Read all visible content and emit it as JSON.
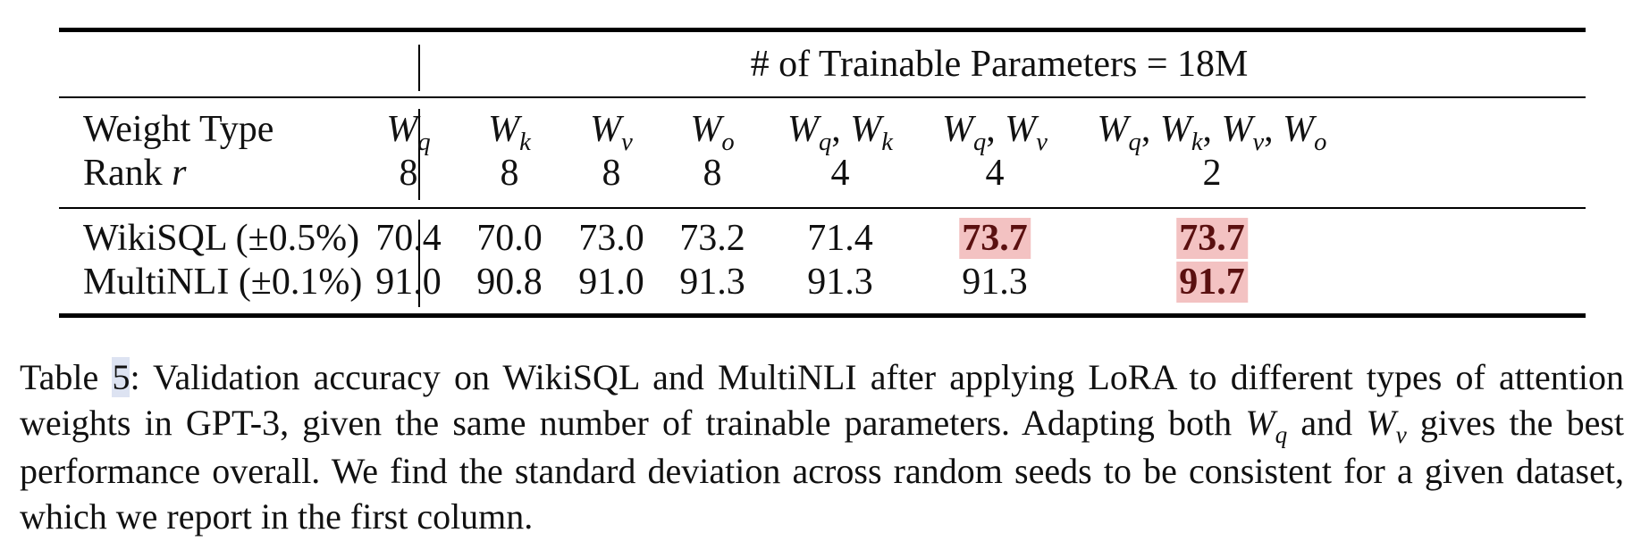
{
  "table": {
    "group_header": "# of Trainable Parameters = 18M",
    "row_labels": {
      "weight_type": "Weight Type",
      "rank_prefix": "Rank",
      "rank_symbol": "r"
    },
    "columns": [
      {
        "weights": [
          {
            "base": "W",
            "sub": "q"
          }
        ],
        "rank": "8"
      },
      {
        "weights": [
          {
            "base": "W",
            "sub": "k"
          }
        ],
        "rank": "8"
      },
      {
        "weights": [
          {
            "base": "W",
            "sub": "v"
          }
        ],
        "rank": "8"
      },
      {
        "weights": [
          {
            "base": "W",
            "sub": "o"
          }
        ],
        "rank": "8"
      },
      {
        "weights": [
          {
            "base": "W",
            "sub": "q"
          },
          {
            "base": "W",
            "sub": "k"
          }
        ],
        "rank": "4"
      },
      {
        "weights": [
          {
            "base": "W",
            "sub": "q"
          },
          {
            "base": "W",
            "sub": "v"
          }
        ],
        "rank": "4"
      },
      {
        "weights": [
          {
            "base": "W",
            "sub": "q"
          },
          {
            "base": "W",
            "sub": "k"
          },
          {
            "base": "W",
            "sub": "v"
          },
          {
            "base": "W",
            "sub": "o"
          }
        ],
        "rank": "2"
      }
    ],
    "rows": [
      {
        "label": "WikiSQL (±0.5%)",
        "values": [
          "70.4",
          "70.0",
          "73.0",
          "73.2",
          "71.4",
          "73.7",
          "73.7"
        ],
        "highlighted": [
          false,
          false,
          false,
          false,
          false,
          true,
          true
        ]
      },
      {
        "label": "MultiNLI (±0.1%)",
        "values": [
          "91.0",
          "90.8",
          "91.0",
          "91.3",
          "91.3",
          "91.3",
          "91.7"
        ],
        "highlighted": [
          false,
          false,
          false,
          false,
          false,
          false,
          true
        ]
      }
    ],
    "highlight_color": "#f3c2c2"
  },
  "caption": {
    "table_word": "Table",
    "table_number": "5",
    "text_1": ": Validation accuracy on WikiSQL and MultiNLI after applying LoRA to different types of attention weights in GPT-3, given the same number of trainable parameters. Adapting both ",
    "w1_base": "W",
    "w1_sub": "q",
    "text_2": " and ",
    "w2_base": "W",
    "w2_sub": "v",
    "text_3": " gives the best performance overall. We find the standard deviation across random seeds to be consistent for a given dataset, which we report in the first column.",
    "ref_highlight_color": "#dde3f2"
  }
}
